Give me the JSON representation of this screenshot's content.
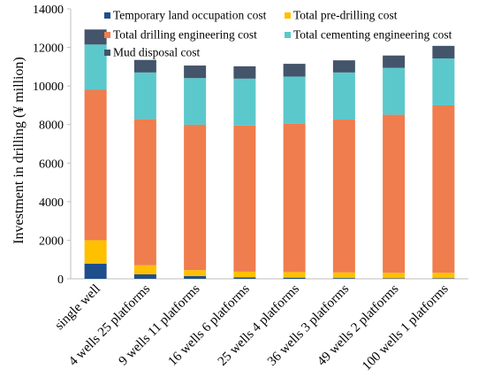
{
  "chart_data": {
    "type": "bar",
    "stacked": true,
    "title": "",
    "xlabel": "",
    "ylabel": "Investment in drilling (¥ million)",
    "ylim": [
      0,
      14000
    ],
    "yticks": [
      0,
      2000,
      4000,
      6000,
      8000,
      10000,
      12000,
      14000
    ],
    "grid": false,
    "legend_position": "top",
    "categories": [
      "single well",
      "4 wells 25 platforms",
      "9 wells 11 platforms",
      "16 wells 6 platforms",
      "25 wells 4 platforms",
      "36 wells 3 platforms",
      "49 wells 2 platforms",
      "100 wells 1 platforms"
    ],
    "series": [
      {
        "name": "Temporary land occupation cost",
        "color": "#1f4e8c",
        "values": [
          780,
          230,
          140,
          70,
          60,
          40,
          30,
          30
        ]
      },
      {
        "name": "Total pre-drilling cost",
        "color": "#ffc000",
        "values": [
          1220,
          470,
          310,
          300,
          290,
          290,
          280,
          280
        ]
      },
      {
        "name": "Total drilling engineering cost",
        "color": "#f07d4d",
        "values": [
          7800,
          7580,
          7540,
          7580,
          7700,
          7930,
          8200,
          8690
        ]
      },
      {
        "name": "Total cementing engineering cost",
        "color": "#5bc8cc",
        "values": [
          2350,
          2420,
          2420,
          2430,
          2440,
          2440,
          2430,
          2430
        ]
      },
      {
        "name": "Mud disposal cost",
        "color": "#44546a",
        "values": [
          780,
          650,
          650,
          640,
          660,
          630,
          640,
          650
        ]
      }
    ]
  }
}
